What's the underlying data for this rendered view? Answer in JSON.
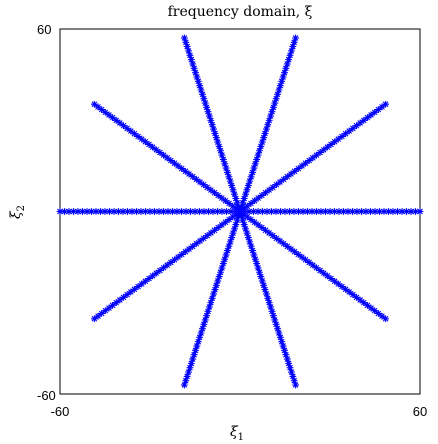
{
  "chart_data": {
    "type": "scatter",
    "title": "frequency domain, ξ",
    "xlabel": "ξ",
    "xlabel_sub": "1",
    "ylabel": "ξ",
    "ylabel_sub": "2",
    "xlim": [
      -60,
      60
    ],
    "ylim": [
      -60,
      60
    ],
    "xticks": [
      "-60",
      "60"
    ],
    "yticks": [
      "-60",
      "60"
    ],
    "grid": false,
    "marker": "asterisk",
    "color": "#0000ff",
    "rays": [
      {
        "angle_deg": 0,
        "length": 60
      },
      {
        "angle_deg": 36,
        "length": 60
      },
      {
        "angle_deg": 72,
        "length": 60
      },
      {
        "angle_deg": 108,
        "length": 60
      },
      {
        "angle_deg": 144,
        "length": 60
      },
      {
        "angle_deg": 180,
        "length": 60
      },
      {
        "angle_deg": 216,
        "length": 60
      },
      {
        "angle_deg": 252,
        "length": 60
      },
      {
        "angle_deg": 288,
        "length": 60
      },
      {
        "angle_deg": 324,
        "length": 60
      }
    ],
    "rays_note_points_per_ray": 40
  }
}
